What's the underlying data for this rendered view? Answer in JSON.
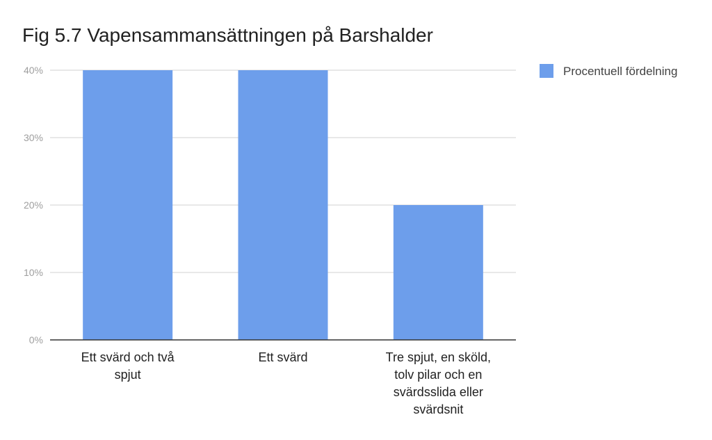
{
  "chart_data": {
    "type": "bar",
    "title": "Fig 5.7 Vapensammansättningen på Barshalder",
    "categories": [
      [
        "Ett svärd och två",
        "spjut"
      ],
      [
        "Ett svärd"
      ],
      [
        "Tre spjut, en sköld,",
        "tolv pilar och en",
        "svärdsslida eller",
        "svärdsnit"
      ]
    ],
    "series": [
      {
        "name": "Procentuell fördelning",
        "values": [
          40,
          40,
          20
        ],
        "color": "#6d9eeb"
      }
    ],
    "yticks": [
      "0%",
      "10%",
      "20%",
      "30%",
      "40%"
    ],
    "ylim": [
      0,
      40
    ],
    "grid": true,
    "legend_position": "right"
  }
}
